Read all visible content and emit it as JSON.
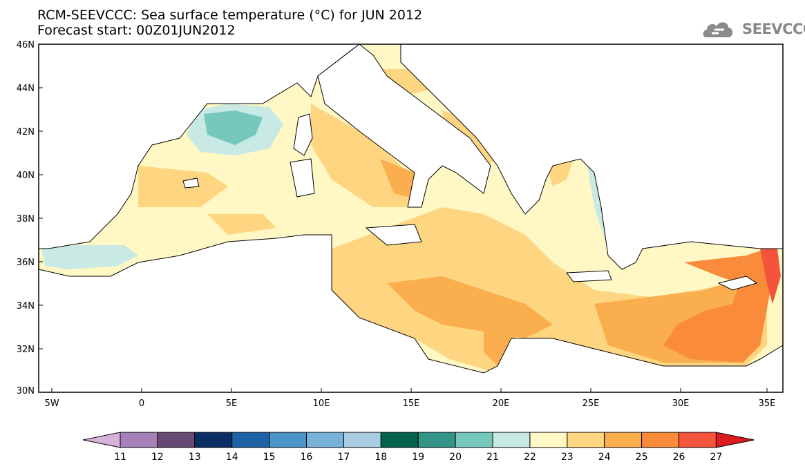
{
  "title": {
    "line1": "RCM-SEEVCCC: Sea surface temperature (°C) for JUN 2012",
    "line2": "Forecast start: 00Z01JUN2012"
  },
  "logo": {
    "text": "SEEVCCC",
    "icon": "cloud-logo-icon"
  },
  "map": {
    "lon_range": [
      -5.5,
      36.3
    ],
    "lat_range": [
      30,
      46
    ],
    "lat_ticks": [
      "46N",
      "44N",
      "42N",
      "40N",
      "38N",
      "36N",
      "34N",
      "32N",
      "30N"
    ],
    "lon_ticks": [
      "5W",
      "0",
      "5E",
      "10E",
      "15E",
      "20E",
      "25E",
      "30E",
      "35E"
    ]
  },
  "colorbar": {
    "levels": [
      "11",
      "12",
      "13",
      "14",
      "15",
      "16",
      "17",
      "18",
      "19",
      "20",
      "21",
      "22",
      "23",
      "24",
      "25",
      "26",
      "27"
    ],
    "colors": [
      "#d6b4da",
      "#a681b8",
      "#664a73",
      "#0c2d63",
      "#1d62a4",
      "#4a95c7",
      "#78b2d8",
      "#a8cde3",
      "#03634d",
      "#339488",
      "#76c7bc",
      "#c8e9e4",
      "#fff8c4",
      "#fed580",
      "#fbae4e",
      "#f98b3b",
      "#f4533c",
      "#dd1c1f"
    ]
  },
  "colors": {
    "land": "#ffffff",
    "coast": "#000000"
  }
}
